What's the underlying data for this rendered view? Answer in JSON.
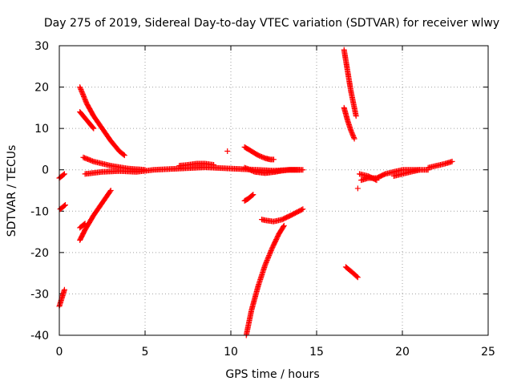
{
  "chart_data": {
    "type": "scatter",
    "title": "Day 275 of 2019, Sidereal Day-to-day VTEC variation (SDTVAR) for receiver wlwy",
    "xlabel": "GPS time / hours",
    "ylabel": "SDTVAR / TECUs",
    "xlim": [
      0,
      25
    ],
    "ylim": [
      -40,
      30
    ],
    "xticks": [
      0,
      5,
      10,
      15,
      20,
      25
    ],
    "yticks": [
      -40,
      -30,
      -20,
      -10,
      0,
      10,
      20,
      30
    ],
    "grid": true,
    "marker": "+",
    "color": "#ff0000",
    "tracks": [
      {
        "x": [
          0.0,
          0.15,
          0.3
        ],
        "y": [
          -33.0,
          -31.0,
          -29.0
        ]
      },
      {
        "x": [
          0.0,
          0.15,
          0.3
        ],
        "y": [
          -2.0,
          -1.5,
          -1.0
        ]
      },
      {
        "x": [
          0.05,
          0.2,
          0.35
        ],
        "y": [
          -9.5,
          -9.0,
          -8.5
        ]
      },
      {
        "x": [
          1.2,
          1.6,
          2.0,
          2.5,
          3.0,
          3.5,
          3.8
        ],
        "y": [
          20.0,
          16.0,
          13.0,
          10.0,
          7.0,
          4.5,
          3.5
        ]
      },
      {
        "x": [
          1.2,
          1.5,
          1.8,
          2.0
        ],
        "y": [
          14.0,
          12.5,
          11.0,
          10.0
        ]
      },
      {
        "x": [
          1.2,
          1.5,
          2.0,
          2.5,
          3.0
        ],
        "y": [
          -17.0,
          -14.5,
          -11.0,
          -8.0,
          -5.0
        ]
      },
      {
        "x": [
          1.2,
          1.5
        ],
        "y": [
          -14.0,
          -13.0
        ]
      },
      {
        "x": [
          1.4,
          2.0,
          3.0,
          4.0,
          5.0
        ],
        "y": [
          3.0,
          2.0,
          1.0,
          0.3,
          0.0
        ]
      },
      {
        "x": [
          1.5,
          2.5,
          3.5,
          4.5,
          5.5,
          6.5,
          7.5,
          8.5,
          9.5,
          10.5,
          11.5,
          12.5,
          13.5,
          14.2
        ],
        "y": [
          -1.0,
          -0.5,
          -0.3,
          -0.5,
          0.0,
          0.2,
          0.4,
          0.6,
          0.4,
          0.2,
          0.0,
          -0.2,
          0.0,
          0.0
        ]
      },
      {
        "x": [
          7.0,
          7.5,
          8.0,
          8.5,
          9.0
        ],
        "y": [
          1.0,
          1.2,
          1.5,
          1.5,
          1.2
        ]
      },
      {
        "x": [
          9.8
        ],
        "y": [
          4.5
        ]
      },
      {
        "x": [
          10.8,
          11.2,
          11.6,
          12.0,
          12.3,
          12.5
        ],
        "y": [
          5.5,
          4.5,
          3.5,
          2.8,
          2.5,
          2.5
        ]
      },
      {
        "x": [
          10.8,
          11.0,
          11.4,
          12.0,
          12.6,
          13.0,
          13.4,
          14.0
        ],
        "y": [
          0.5,
          0.2,
          -0.5,
          -0.8,
          -0.5,
          -0.2,
          0.0,
          0.0
        ]
      },
      {
        "x": [
          10.8,
          11.0,
          11.3
        ],
        "y": [
          -7.5,
          -7.0,
          -6.0
        ]
      },
      {
        "x": [
          10.9,
          11.2,
          11.6,
          12.0,
          12.4,
          12.8,
          13.1
        ],
        "y": [
          -40.0,
          -34.0,
          -28.0,
          -23.0,
          -19.0,
          -15.5,
          -13.5
        ]
      },
      {
        "x": [
          11.8,
          12.0,
          12.5,
          13.0,
          13.5,
          14.2
        ],
        "y": [
          -12.0,
          -12.2,
          -12.5,
          -12.0,
          -11.0,
          -9.5
        ]
      },
      {
        "x": [
          16.6,
          16.8,
          17.0,
          17.3
        ],
        "y": [
          29.0,
          24.0,
          19.0,
          13.0
        ]
      },
      {
        "x": [
          16.6,
          16.8,
          17.0,
          17.2
        ],
        "y": [
          15.0,
          12.0,
          9.5,
          7.5
        ]
      },
      {
        "x": [
          16.7,
          17.0,
          17.4
        ],
        "y": [
          -23.5,
          -24.5,
          -26.0
        ]
      },
      {
        "x": [
          17.4
        ],
        "y": [
          -4.5
        ]
      },
      {
        "x": [
          17.6,
          18.0,
          18.5,
          19.0,
          19.5,
          20.0,
          20.5,
          21.0,
          21.5
        ],
        "y": [
          -2.5,
          -2.0,
          -2.0,
          -1.0,
          -0.5,
          0.0,
          0.0,
          0.0,
          0.0
        ]
      },
      {
        "x": [
          17.5,
          18.0,
          18.5
        ],
        "y": [
          -1.0,
          -1.5,
          -2.5
        ]
      },
      {
        "x": [
          19.5,
          20.0,
          20.5,
          21.0
        ],
        "y": [
          -1.5,
          -1.0,
          -0.5,
          0.0
        ]
      },
      {
        "x": [
          21.5,
          22.0,
          22.5,
          22.9
        ],
        "y": [
          0.5,
          1.0,
          1.5,
          2.0
        ]
      }
    ]
  }
}
